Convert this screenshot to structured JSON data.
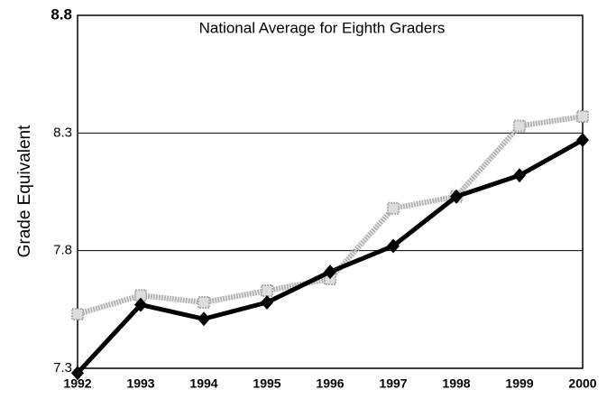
{
  "chart_data": {
    "type": "line",
    "title": "National Average for Eighth Graders",
    "y_label": "Grade Equivalent",
    "categories": [
      "1992",
      "1993",
      "1994",
      "1995",
      "1996",
      "1997",
      "1998",
      "1999",
      "2000"
    ],
    "series": [
      {
        "color": "#b0b0b0",
        "values": [
          7.53,
          7.61,
          7.58,
          7.63,
          7.68,
          7.98,
          8.03,
          8.33,
          8.37
        ]
      },
      {
        "color": "#000000",
        "values": [
          7.28,
          7.57,
          7.51,
          7.58,
          7.71,
          7.82,
          8.03,
          8.12,
          8.27
        ]
      }
    ],
    "ylim": [
      7.3,
      8.8
    ],
    "yticks": [
      7.3,
      7.8,
      8.3,
      8.8
    ],
    "grid": true
  }
}
